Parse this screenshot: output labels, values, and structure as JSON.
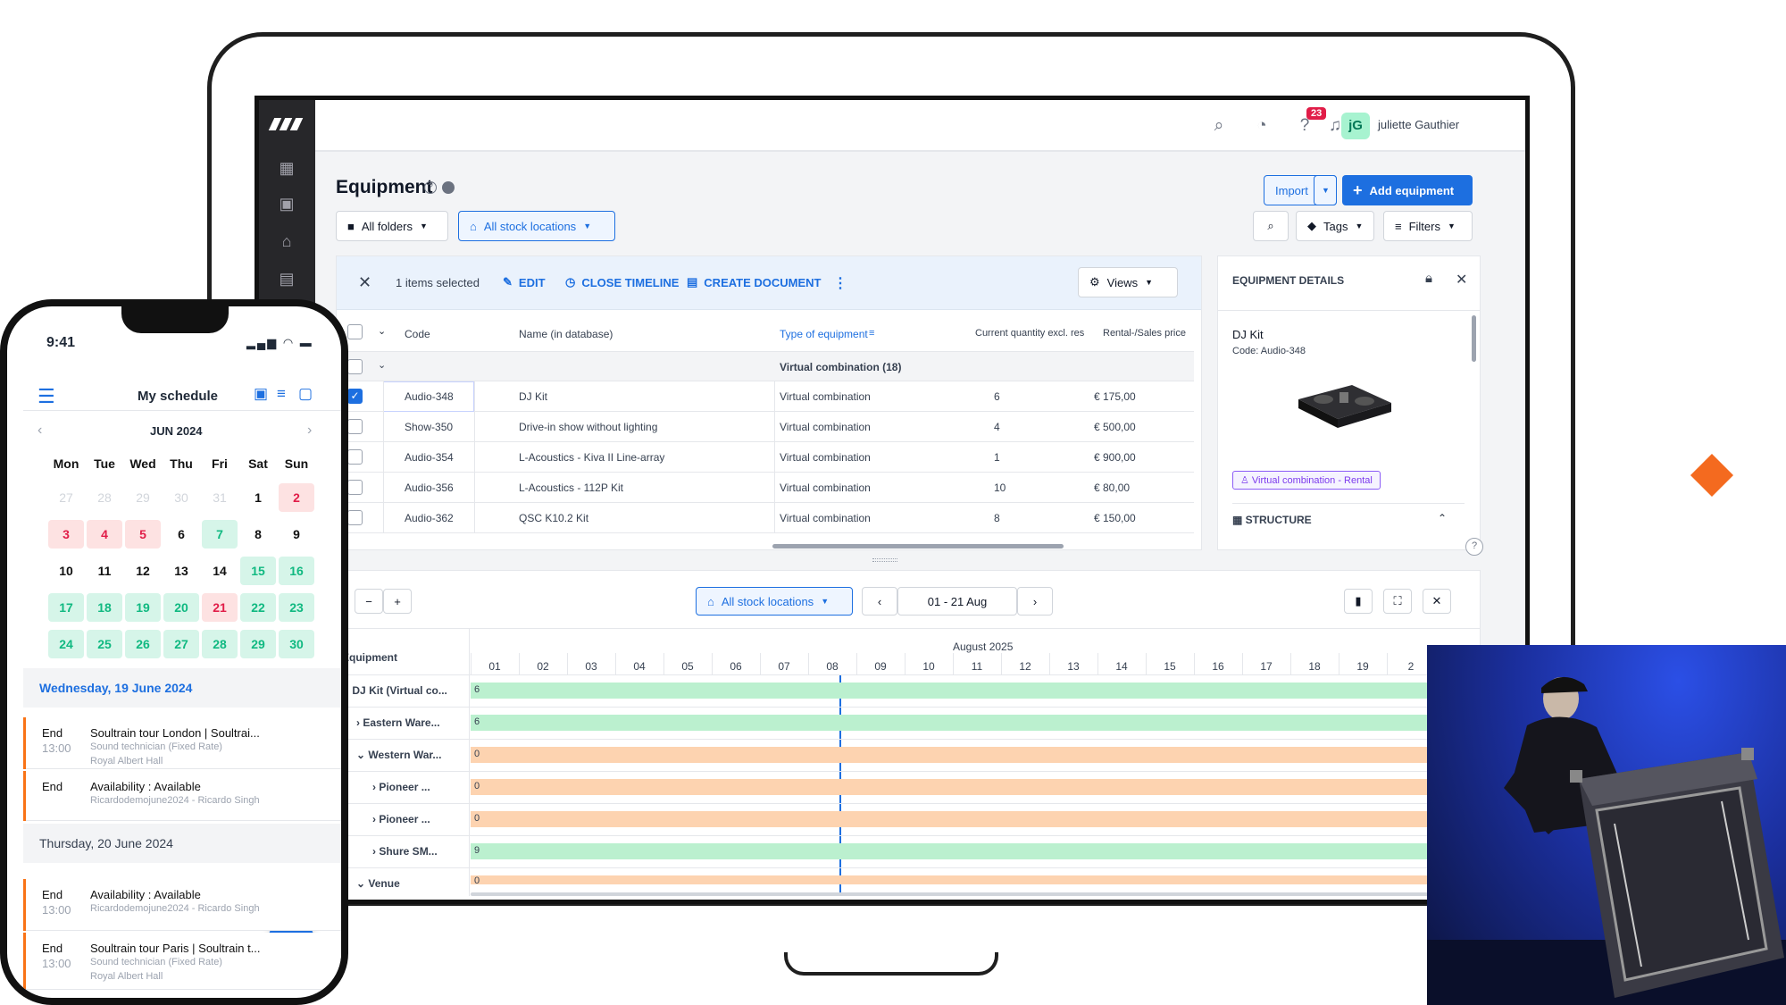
{
  "app": {
    "user_name": "juliette Gauthier",
    "avatar_initials": "jG",
    "notification_count": "23",
    "accent_color": "#1d6fe0"
  },
  "page": {
    "title": "Equipment",
    "import_label": "Import",
    "add_label": "Add equipment",
    "folders_label": "All folders",
    "stock_label": "All stock locations",
    "tags_label": "Tags",
    "filters_label": "Filters"
  },
  "selection": {
    "count_text": "1 items selected",
    "edit": "EDIT",
    "close_timeline": "CLOSE TIMELINE",
    "create_document": "CREATE DOCUMENT",
    "views": "Views"
  },
  "table": {
    "headers": [
      "Code",
      "Name (in database)",
      "Type of equipment",
      "Current quantity excl. res",
      "Rental-/Sales price"
    ],
    "group_label": "Virtual combination (18)",
    "rows": [
      {
        "code": "Audio-348",
        "name": "DJ Kit",
        "type": "Virtual combination",
        "qty": "6",
        "price": "€ 175,00",
        "checked": true
      },
      {
        "code": "Show-350",
        "name": "Drive-in show without lighting",
        "type": "Virtual combination",
        "qty": "4",
        "price": "€ 500,00",
        "checked": false
      },
      {
        "code": "Audio-354",
        "name": "L-Acoustics - Kiva II Line-array",
        "type": "Virtual combination",
        "qty": "1",
        "price": "€ 900,00",
        "checked": false
      },
      {
        "code": "Audio-356",
        "name": "L-Acoustics - 112P Kit",
        "type": "Virtual combination",
        "qty": "10",
        "price": "€ 80,00",
        "checked": false
      },
      {
        "code": "Audio-362",
        "name": "QSC K10.2 Kit",
        "type": "Virtual combination",
        "qty": "8",
        "price": "€ 150,00",
        "checked": false
      }
    ]
  },
  "details": {
    "title": "EQUIPMENT DETAILS",
    "item_name": "DJ Kit",
    "item_code": "Code: Audio-348",
    "tag": "Virtual combination - Rental",
    "structure": "STRUCTURE"
  },
  "timeline": {
    "stock_label": "All stock locations",
    "range": "01 - 21 Aug",
    "month": "August 2025",
    "col_header": "Equipment",
    "days": [
      "01",
      "02",
      "03",
      "04",
      "05",
      "06",
      "07",
      "08",
      "09",
      "10",
      "11",
      "12",
      "13",
      "14",
      "15",
      "16",
      "17",
      "18",
      "19",
      "2"
    ],
    "rows": [
      {
        "name": "DJ Kit (Virtual co...",
        "value": "6",
        "status": "available"
      },
      {
        "name": "Eastern Ware...",
        "value": "6",
        "status": "available"
      },
      {
        "name": "Western War...",
        "value": "0",
        "status": "empty"
      },
      {
        "name": "Pioneer ...",
        "value": "0",
        "status": "empty"
      },
      {
        "name": "Pioneer ...",
        "value": "0",
        "status": "empty"
      },
      {
        "name": "Shure SM...",
        "value": "9",
        "status": "available"
      },
      {
        "name": "Venue",
        "value": "0",
        "status": "empty"
      }
    ]
  },
  "phone": {
    "time": "9:41",
    "title": "My schedule",
    "month": "JUN 2024",
    "weekdays": [
      "Mon",
      "Tue",
      "Wed",
      "Thu",
      "Fri",
      "Sat",
      "Sun"
    ],
    "weeks": [
      [
        {
          "d": "27",
          "s": "gray"
        },
        {
          "d": "28",
          "s": "gray"
        },
        {
          "d": "29",
          "s": "gray"
        },
        {
          "d": "30",
          "s": "gray"
        },
        {
          "d": "31",
          "s": "gray"
        },
        {
          "d": "1",
          "s": ""
        },
        {
          "d": "2",
          "s": "red"
        }
      ],
      [
        {
          "d": "3",
          "s": "red"
        },
        {
          "d": "4",
          "s": "red"
        },
        {
          "d": "5",
          "s": "red"
        },
        {
          "d": "6",
          "s": ""
        },
        {
          "d": "7",
          "s": "green"
        },
        {
          "d": "8",
          "s": ""
        },
        {
          "d": "9",
          "s": ""
        }
      ],
      [
        {
          "d": "10",
          "s": ""
        },
        {
          "d": "11",
          "s": ""
        },
        {
          "d": "12",
          "s": ""
        },
        {
          "d": "13",
          "s": ""
        },
        {
          "d": "14",
          "s": ""
        },
        {
          "d": "15",
          "s": "green"
        },
        {
          "d": "16",
          "s": "green"
        }
      ],
      [
        {
          "d": "17",
          "s": "green"
        },
        {
          "d": "18",
          "s": "green"
        },
        {
          "d": "19",
          "s": "green"
        },
        {
          "d": "20",
          "s": "green"
        },
        {
          "d": "21",
          "s": "red"
        },
        {
          "d": "22",
          "s": "green"
        },
        {
          "d": "23",
          "s": "green"
        }
      ],
      [
        {
          "d": "24",
          "s": "green"
        },
        {
          "d": "25",
          "s": "green"
        },
        {
          "d": "26",
          "s": "green"
        },
        {
          "d": "27",
          "s": "green"
        },
        {
          "d": "28",
          "s": "green"
        },
        {
          "d": "29",
          "s": "green"
        },
        {
          "d": "30",
          "s": "green"
        }
      ]
    ],
    "day1": "Wednesday, 19 June 2024",
    "day2": "Thursday, 20 June 2024",
    "events": [
      {
        "k": "End",
        "time": "13:00",
        "title": "Soultrain tour London | Soultrai...",
        "sub1": "Sound technician (Fixed Rate)",
        "sub2": "Royal Albert Hall"
      },
      {
        "k": "End",
        "time": "",
        "title": "Availability : Available",
        "sub1": "Ricardodemojune2024 - Ricardo Singh",
        "sub2": ""
      },
      {
        "k": "End",
        "time": "13:00",
        "title": "Availability : Available",
        "sub1": "Ricardodemojune2024 - Ricardo Singh",
        "sub2": ""
      },
      {
        "k": "End",
        "time": "13:00",
        "title": "Soultrain tour Paris | Soultrain t...",
        "sub1": "Sound technician (Fixed Rate)",
        "sub2": "Royal Albert Hall"
      }
    ]
  }
}
